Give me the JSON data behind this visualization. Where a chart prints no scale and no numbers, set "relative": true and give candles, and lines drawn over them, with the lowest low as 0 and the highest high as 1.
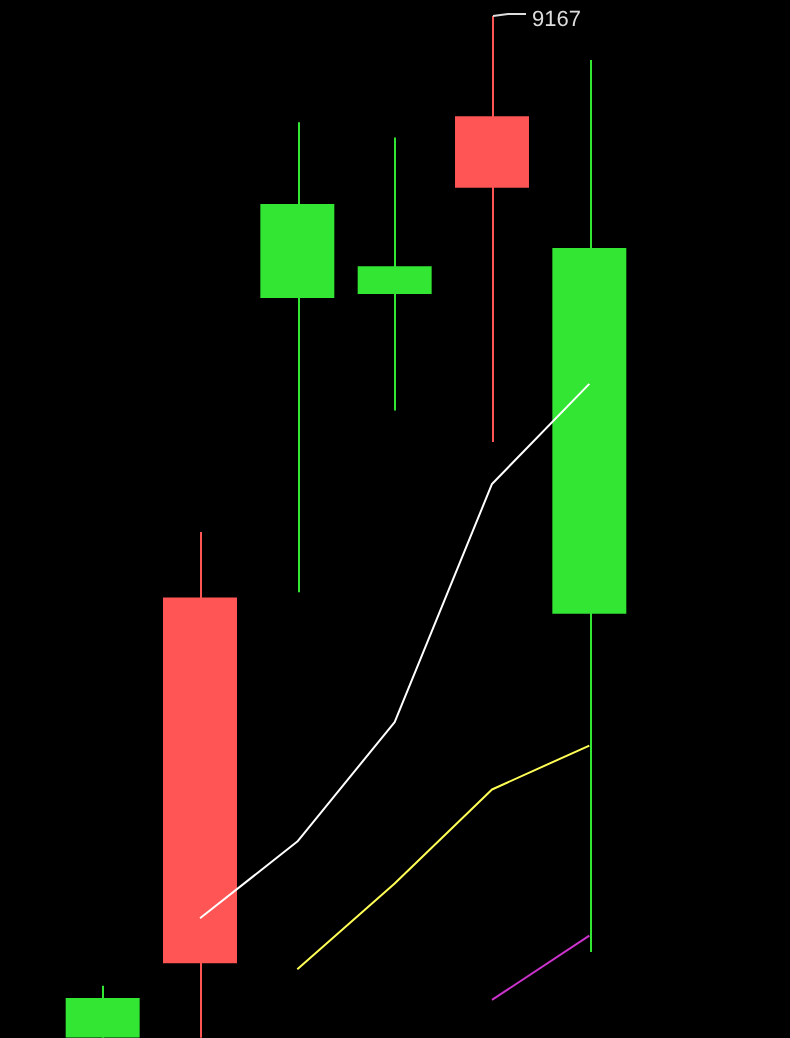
{
  "chart_data": {
    "type": "candlestick",
    "relative": true,
    "categories": [
      null,
      null,
      null,
      null,
      null,
      null
    ],
    "ohlc": [
      [
        0.039,
        0.051,
        0,
        0
      ],
      [
        0.073,
        0.495,
        0,
        0.431
      ],
      [
        0.816,
        0.896,
        0.436,
        0.724
      ],
      [
        0.755,
        0.881,
        0.614,
        0.728
      ],
      [
        0.832,
        1,
        0.583,
        0.902
      ],
      [
        0.773,
        0.957,
        0.084,
        0.415
      ]
    ],
    "colors": [
      "#33e633",
      "#ff5555",
      "#33e633",
      "#33e633",
      "#ff5555",
      "#33e633"
    ],
    "series": [
      {
        "type": "line",
        "color": "#ffffff",
        "values": [
          null,
          0.117,
          0.192,
          0.309,
          0.542,
          0.64
        ]
      },
      {
        "type": "line",
        "color": "#ffff55",
        "values": [
          null,
          null,
          0.067,
          0.151,
          0.243,
          0.286
        ]
      },
      {
        "type": "line",
        "color": "#cc33cc",
        "values": [
          null,
          null,
          null,
          null,
          0.037,
          0.1
        ]
      }
    ],
    "annotations": [
      "9167"
    ],
    "legend": false,
    "marker": "none",
    "line_style": "solid"
  }
}
